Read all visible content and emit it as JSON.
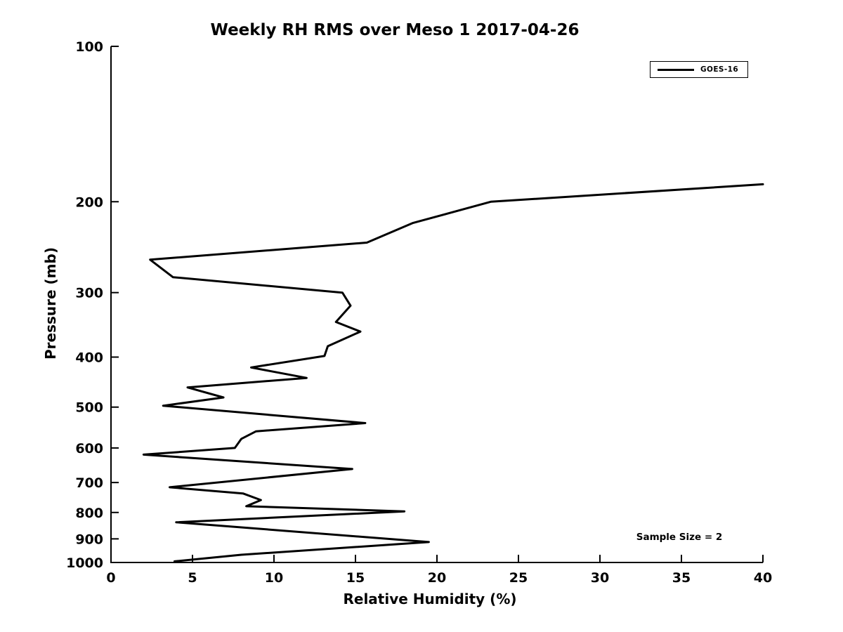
{
  "figure": {
    "background_color": "#ffffff",
    "line_color": "#000000",
    "text_color": "#000000"
  },
  "chart_data": {
    "type": "line",
    "title": "Weekly RH RMS over Meso 1 2017-04-26",
    "xlabel": "Relative Humidity (%)",
    "ylabel": "Pressure (mb)",
    "xlim": [
      0,
      40
    ],
    "ylim": [
      100,
      1000
    ],
    "x_scale": "linear",
    "y_scale": "log",
    "y_inverted": true,
    "grid": false,
    "x_ticks": [
      0,
      5,
      10,
      15,
      20,
      25,
      30,
      35,
      40
    ],
    "y_ticks": [
      100,
      200,
      300,
      400,
      500,
      600,
      700,
      800,
      900,
      1000
    ],
    "legend": {
      "position": "top-right",
      "entries": [
        {
          "label": "GOES-16",
          "color": "#000000",
          "line_width": 3
        }
      ]
    },
    "annotation": "Sample Size = 2",
    "series": [
      {
        "name": "GOES-16",
        "color": "#000000",
        "line_width": 3,
        "points_format": [
          "relative_humidity_percent",
          "pressure_mb"
        ],
        "points": [
          [
            40.0,
            185
          ],
          [
            23.3,
            200
          ],
          [
            18.5,
            220
          ],
          [
            15.7,
            240
          ],
          [
            2.4,
            259
          ],
          [
            3.8,
            280
          ],
          [
            14.2,
            300
          ],
          [
            14.7,
            318
          ],
          [
            13.8,
            342
          ],
          [
            15.3,
            357
          ],
          [
            13.3,
            381
          ],
          [
            13.1,
            398
          ],
          [
            8.6,
            419
          ],
          [
            12.0,
            439
          ],
          [
            4.7,
            458
          ],
          [
            6.9,
            479
          ],
          [
            3.2,
            497
          ],
          [
            15.6,
            537
          ],
          [
            8.9,
            557
          ],
          [
            8.0,
            576
          ],
          [
            7.6,
            600
          ],
          [
            2.0,
            618
          ],
          [
            14.8,
            659
          ],
          [
            3.6,
            715
          ],
          [
            8.1,
            735
          ],
          [
            9.2,
            757
          ],
          [
            8.3,
            778
          ],
          [
            18.0,
            796
          ],
          [
            4.0,
            836
          ],
          [
            19.5,
            913
          ],
          [
            8.0,
            966
          ],
          [
            3.9,
            995
          ]
        ]
      }
    ]
  }
}
